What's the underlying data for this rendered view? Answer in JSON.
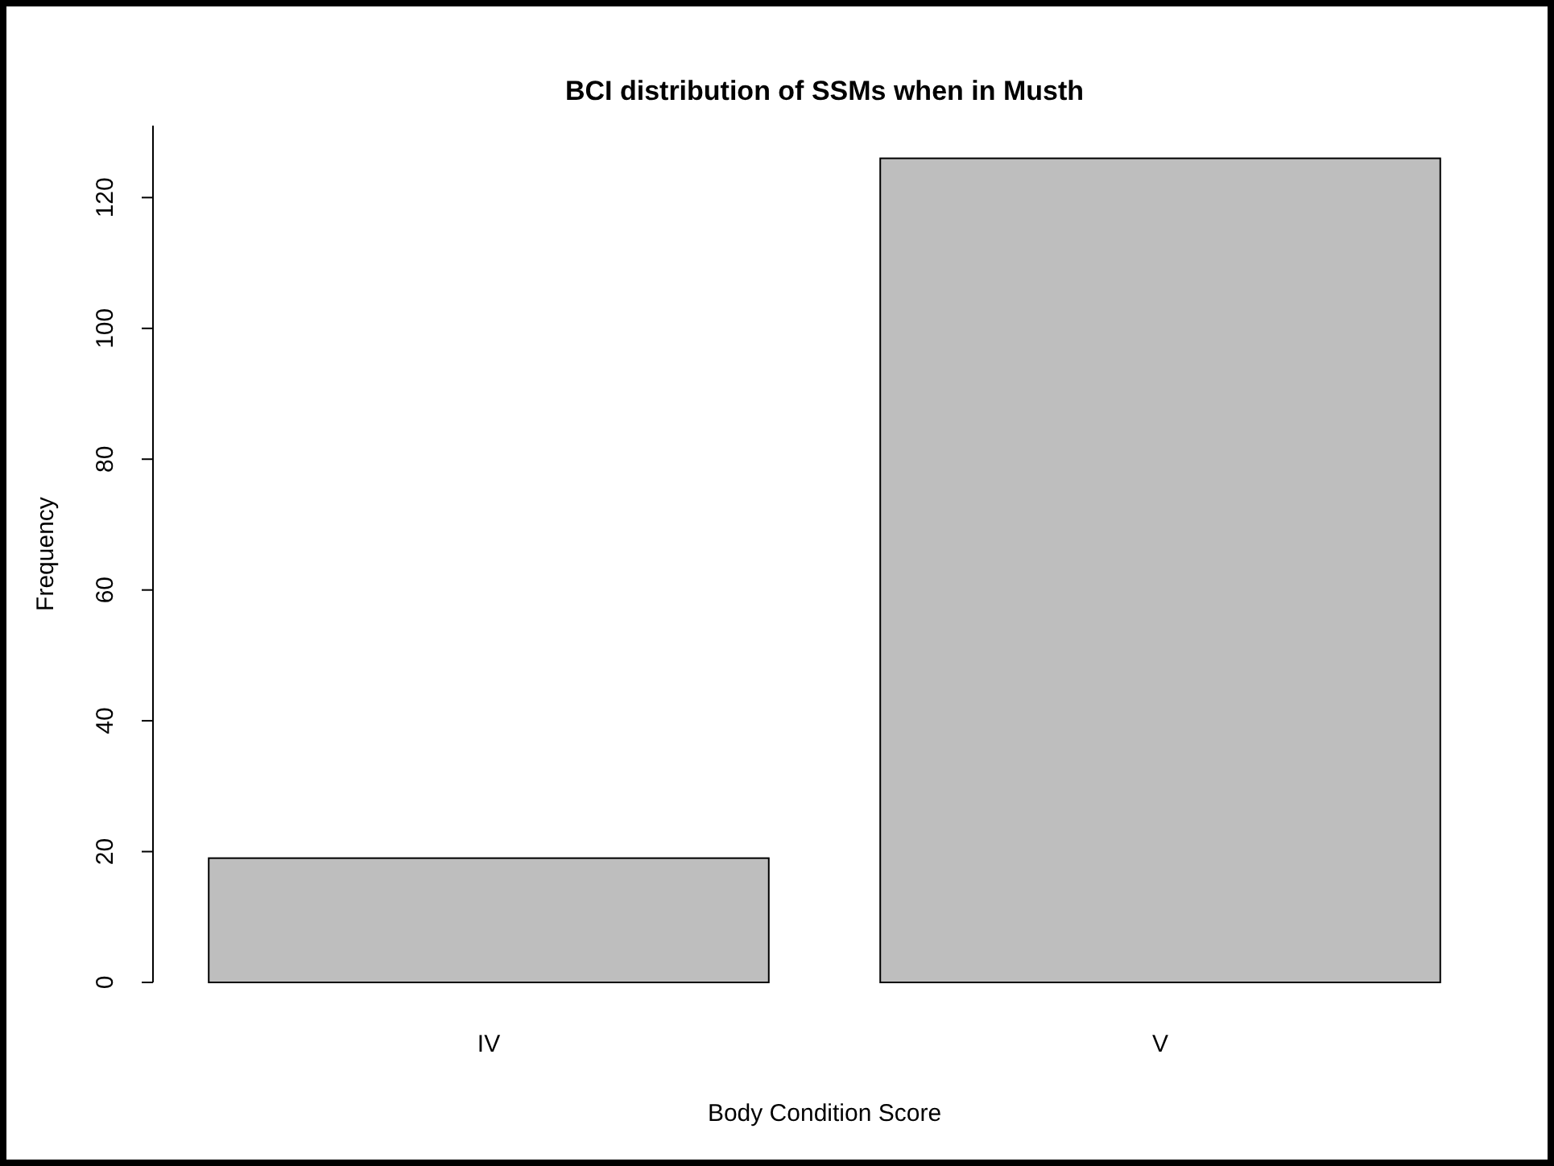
{
  "chart_data": {
    "type": "bar",
    "title": "BCI distribution of SSMs when in Musth",
    "xlabel": "Body Condition Score",
    "ylabel": "Frequency",
    "categories": [
      "IV",
      "V"
    ],
    "values": [
      19,
      126
    ],
    "color": "#bebebe",
    "ylim": [
      0,
      131
    ],
    "yticks": [
      0,
      20,
      40,
      60,
      80,
      100,
      120
    ],
    "grid": false
  }
}
